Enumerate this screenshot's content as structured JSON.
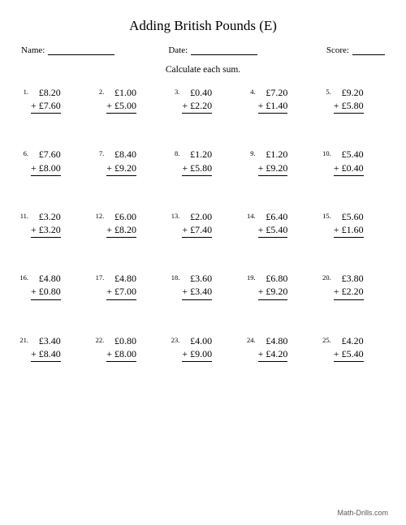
{
  "title": "Adding British Pounds (E)",
  "header": {
    "name_label": "Name:",
    "date_label": "Date:",
    "score_label": "Score:"
  },
  "instruction": "Calculate each sum.",
  "currency_symbol": "£",
  "operator": "+",
  "problems": [
    {
      "n": "1.",
      "a": "8.20",
      "b": "7.60"
    },
    {
      "n": "2.",
      "a": "1.00",
      "b": "5.00"
    },
    {
      "n": "3.",
      "a": "0.40",
      "b": "2.20"
    },
    {
      "n": "4.",
      "a": "7.20",
      "b": "1.40"
    },
    {
      "n": "5.",
      "a": "9.20",
      "b": "5.80"
    },
    {
      "n": "6.",
      "a": "7.60",
      "b": "8.00"
    },
    {
      "n": "7.",
      "a": "8.40",
      "b": "9.20"
    },
    {
      "n": "8.",
      "a": "1.20",
      "b": "5.80"
    },
    {
      "n": "9.",
      "a": "1.20",
      "b": "9.20"
    },
    {
      "n": "10.",
      "a": "5.40",
      "b": "0.40"
    },
    {
      "n": "11.",
      "a": "3.20",
      "b": "3.20"
    },
    {
      "n": "12.",
      "a": "6.00",
      "b": "8.20"
    },
    {
      "n": "13.",
      "a": "2.00",
      "b": "7.40"
    },
    {
      "n": "14.",
      "a": "6.40",
      "b": "5.40"
    },
    {
      "n": "15.",
      "a": "5.60",
      "b": "1.60"
    },
    {
      "n": "16.",
      "a": "4.80",
      "b": "0.80"
    },
    {
      "n": "17.",
      "a": "4.80",
      "b": "7.00"
    },
    {
      "n": "18.",
      "a": "3.60",
      "b": "3.40"
    },
    {
      "n": "19.",
      "a": "6.80",
      "b": "9.20"
    },
    {
      "n": "20.",
      "a": "3.80",
      "b": "2.20"
    },
    {
      "n": "21.",
      "a": "3.40",
      "b": "8.40"
    },
    {
      "n": "22.",
      "a": "0.80",
      "b": "8.00"
    },
    {
      "n": "23.",
      "a": "4.00",
      "b": "9.00"
    },
    {
      "n": "24.",
      "a": "4.80",
      "b": "4.20"
    },
    {
      "n": "25.",
      "a": "4.20",
      "b": "5.40"
    }
  ],
  "footer": "Math-Drills.com"
}
